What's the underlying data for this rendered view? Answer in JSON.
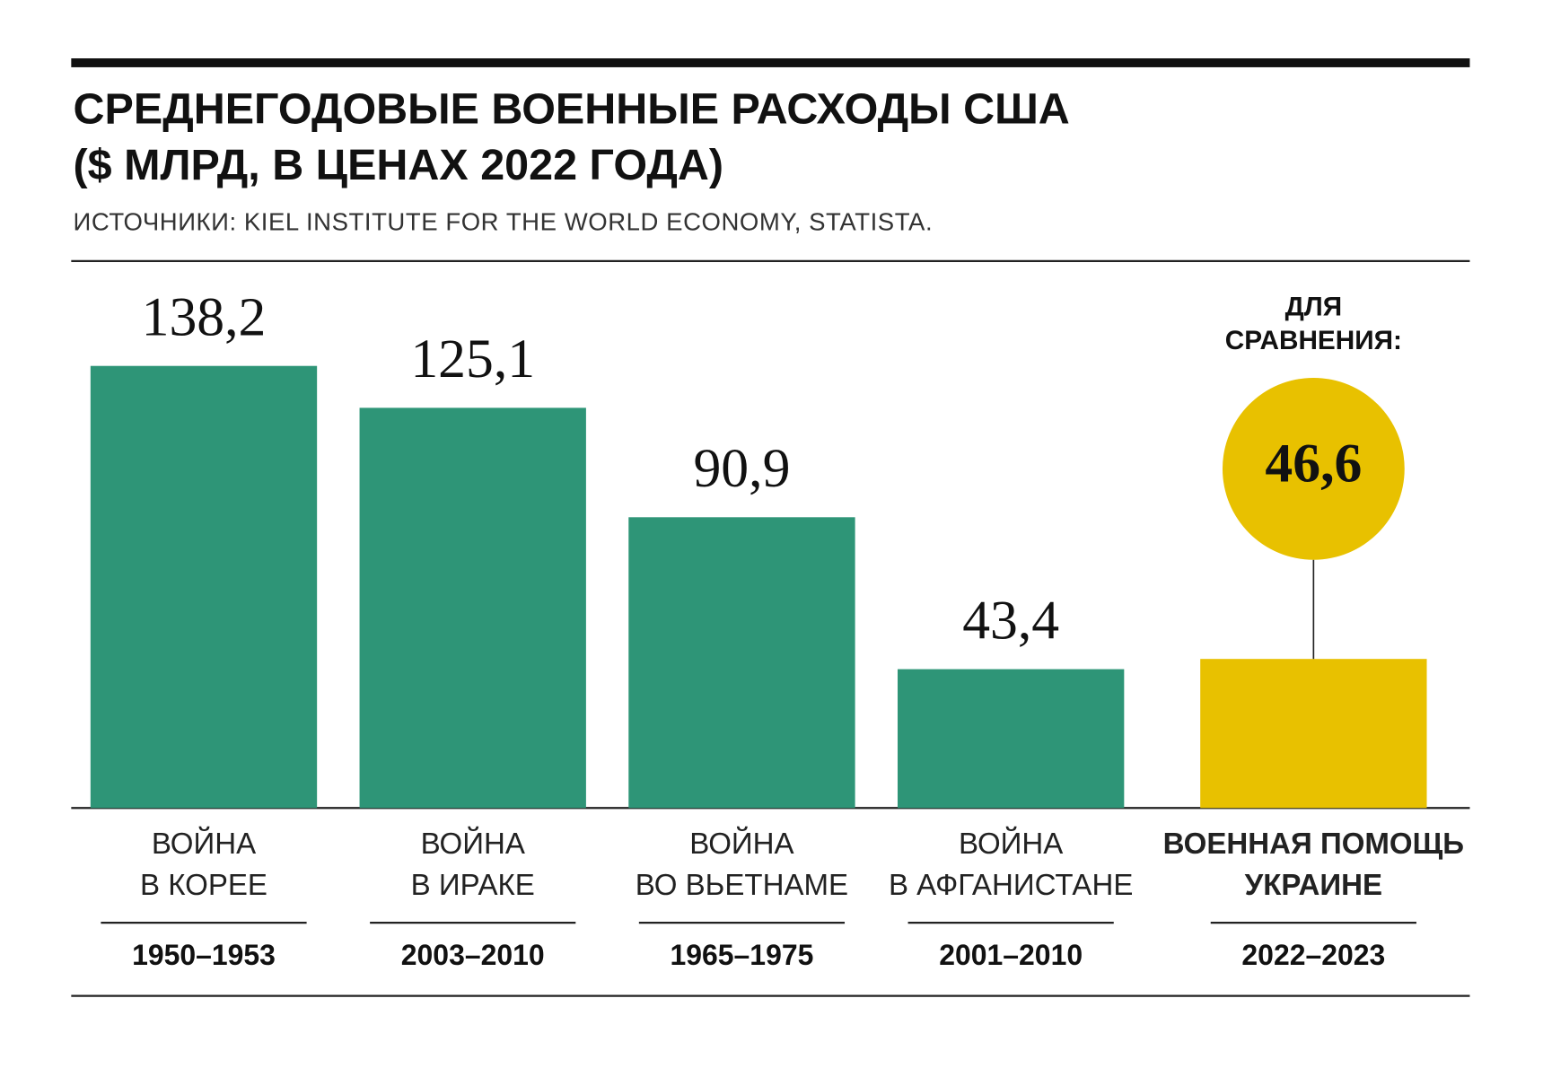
{
  "chart_data": {
    "type": "bar",
    "title": [
      "СРЕДНЕГОДОВЫЕ ВОЕННЫЕ РАСХОДЫ США",
      "($ МЛРД, В ЦЕНАХ 2022 ГОДА)"
    ],
    "subtitle": "ИСТОЧНИКИ: KIEL INSTITUTE FOR THE WORLD ECONOMY, STATISTA.",
    "categories": [
      [
        "ВОЙНА",
        "В КОРЕЕ"
      ],
      [
        "ВОЙНА",
        "В ИРАКЕ"
      ],
      [
        "ВОЙНА",
        "ВО ВЬЕТНАМЕ"
      ],
      [
        "ВОЙНА",
        "В АФГАНИСТАНЕ"
      ],
      [
        "ВОЕННАЯ ПОМОЩЬ",
        "УКРАИНЕ"
      ]
    ],
    "periods": [
      "1950–1953",
      "2003–2010",
      "1965–1975",
      "2001–2010",
      "2022–2023"
    ],
    "values": [
      138.2,
      125.1,
      90.9,
      43.4,
      46.6
    ],
    "value_labels": [
      "138,2",
      "125,1",
      "90,9",
      "43,4",
      "46,6"
    ],
    "colors": [
      "#2e9577",
      "#2e9577",
      "#2e9577",
      "#2e9577",
      "#e8c100"
    ],
    "highlight_color": "#e8c100",
    "annotation": [
      "ДЛЯ",
      "СРАВНЕНИЯ:"
    ]
  }
}
